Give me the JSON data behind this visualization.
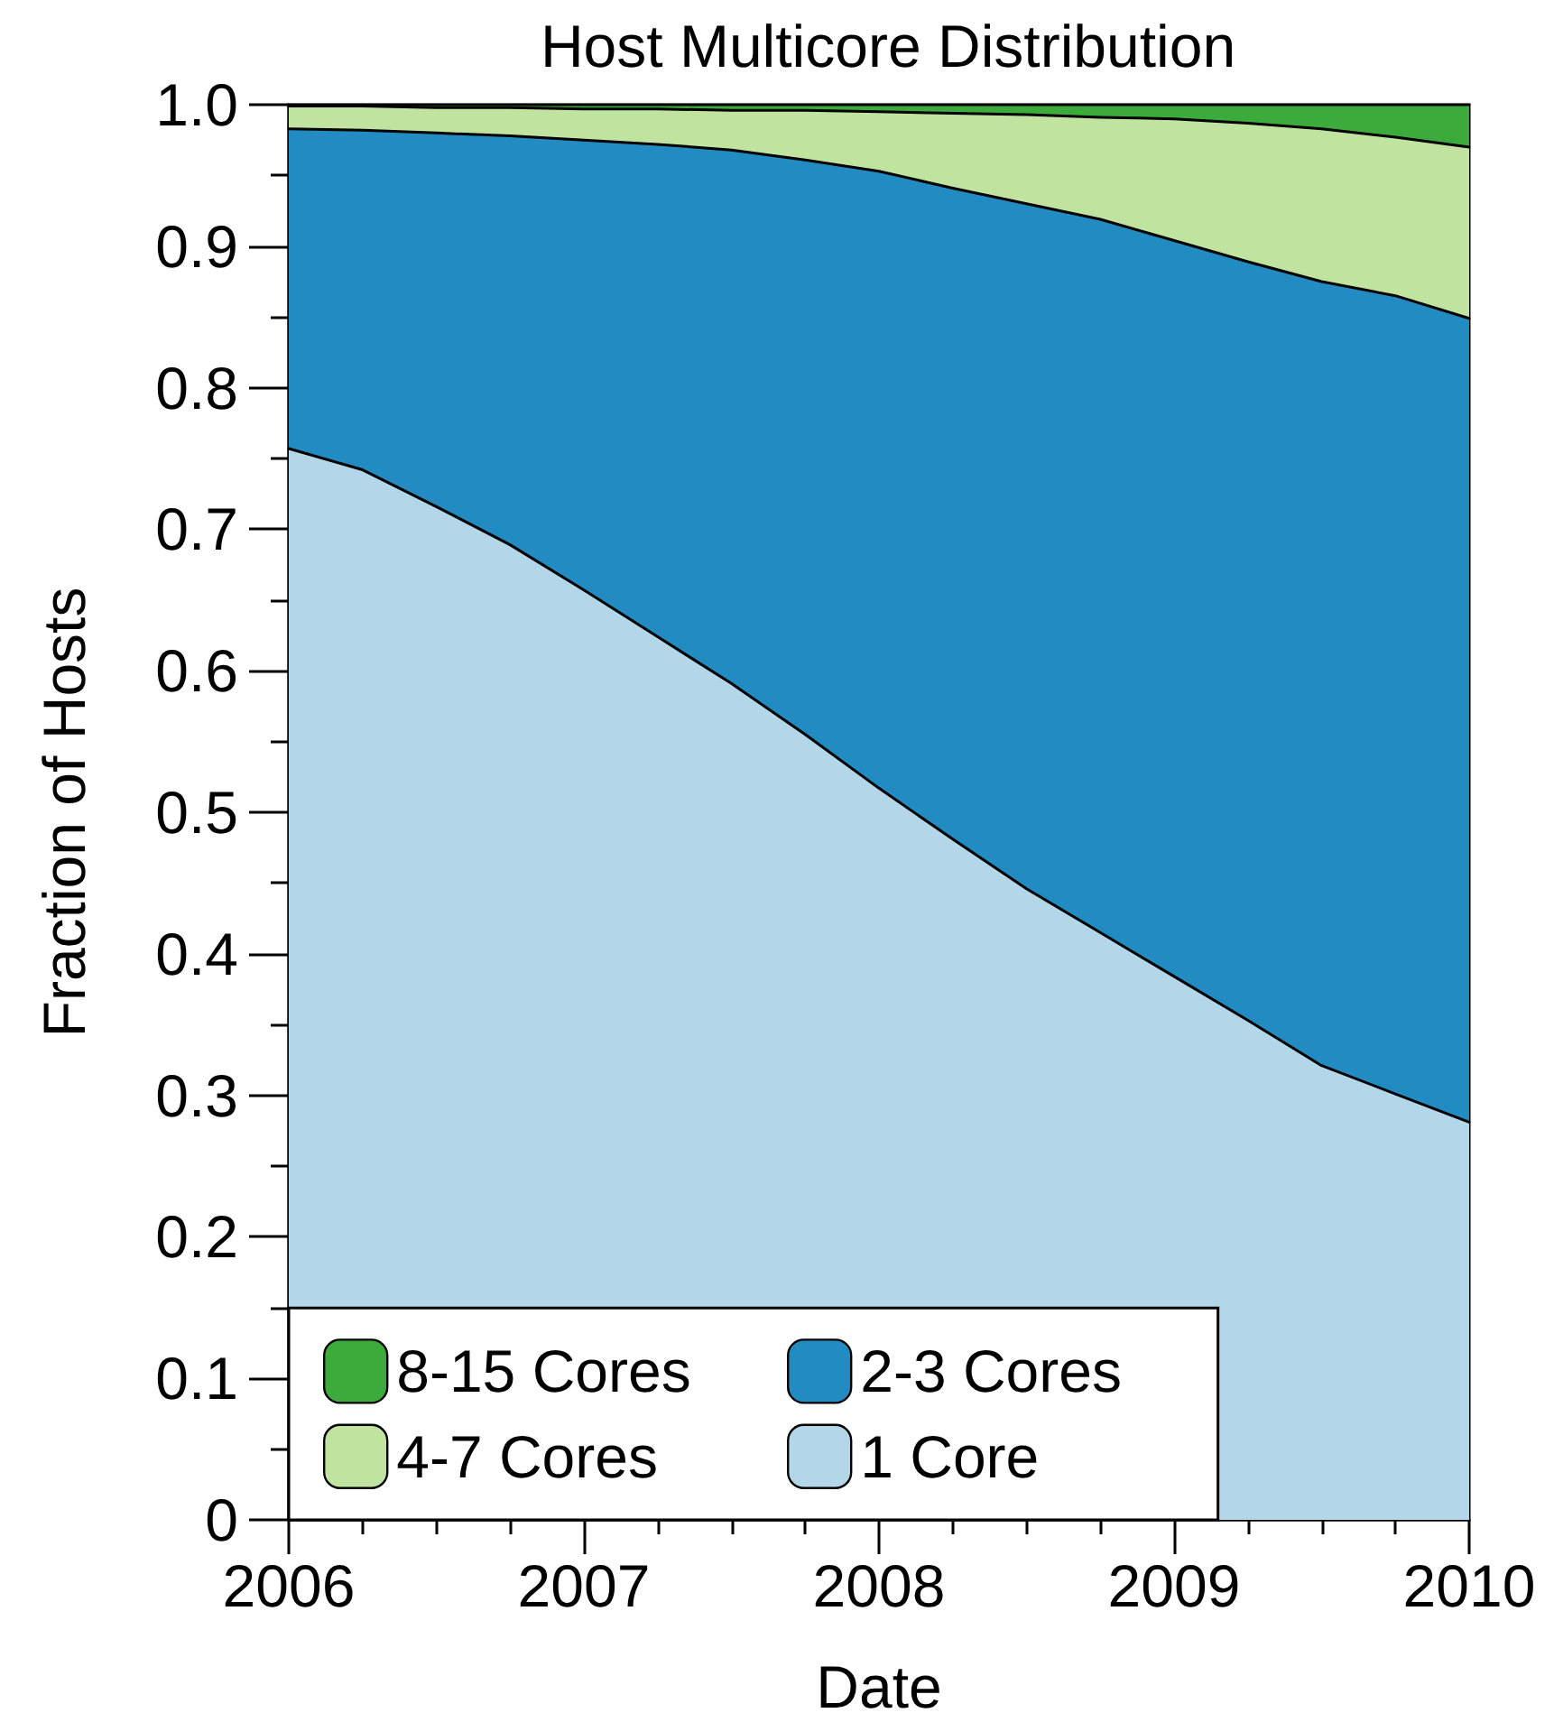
{
  "chart_data": {
    "type": "area",
    "title": "Host Multicore Distribution",
    "xlabel": "Date",
    "ylabel": "Fraction of Hosts",
    "x": [
      2006,
      2006.25,
      2006.5,
      2006.75,
      2007,
      2007.25,
      2007.5,
      2007.75,
      2008,
      2008.25,
      2008.5,
      2008.75,
      2009,
      2009.25,
      2009.5,
      2009.75,
      2010
    ],
    "series": [
      {
        "name": "1 Core",
        "color": "#b3d6e8",
        "values": [
          0.757,
          0.742,
          0.716,
          0.689,
          0.657,
          0.624,
          0.591,
          0.555,
          0.517,
          0.481,
          0.446,
          0.415,
          0.384,
          0.353,
          0.321,
          0.301,
          0.281
        ]
      },
      {
        "name": "2-3 Cores",
        "color": "#228bc2",
        "values": [
          0.226,
          0.24,
          0.264,
          0.289,
          0.318,
          0.348,
          0.377,
          0.406,
          0.436,
          0.46,
          0.484,
          0.504,
          0.52,
          0.536,
          0.554,
          0.564,
          0.568
        ]
      },
      {
        "name": "4-7 Cores",
        "color": "#c0e4a0",
        "values": [
          0.016,
          0.017,
          0.018,
          0.02,
          0.022,
          0.025,
          0.028,
          0.035,
          0.042,
          0.053,
          0.063,
          0.072,
          0.086,
          0.098,
          0.108,
          0.112,
          0.121
        ]
      },
      {
        "name": "8-15 Cores",
        "color": "#3dab3b",
        "values": [
          0.001,
          0.001,
          0.002,
          0.002,
          0.003,
          0.003,
          0.004,
          0.004,
          0.005,
          0.006,
          0.007,
          0.009,
          0.01,
          0.013,
          0.017,
          0.023,
          0.03
        ]
      }
    ],
    "stacked": true,
    "xlim": [
      2006,
      2010
    ],
    "xticks": [
      2006,
      2007,
      2008,
      2009,
      2010,
      {
        "value": 2006.25,
        "label": null
      },
      {
        "value": 2006.5,
        "label": null
      },
      {
        "value": 2006.75,
        "label": null
      },
      {
        "value": 2007.25,
        "label": null
      },
      {
        "value": 2007.5,
        "label": null
      },
      {
        "value": 2007.75,
        "label": null
      },
      {
        "value": 2008.25,
        "label": null
      },
      {
        "value": 2008.5,
        "label": null
      },
      {
        "value": 2008.75,
        "label": null
      },
      {
        "value": 2009.25,
        "label": null
      },
      {
        "value": 2009.5,
        "label": null
      },
      {
        "value": 2009.75,
        "label": null
      }
    ],
    "ylim": [
      0,
      1
    ],
    "yticks": [
      0,
      0.1,
      0.2,
      0.3,
      0.4,
      0.5,
      0.6,
      0.7,
      0.8,
      0.9,
      {
        "value": 1,
        "label": "1.0"
      },
      {
        "value": 0.05,
        "label": null
      },
      {
        "value": 0.15,
        "label": null
      },
      {
        "value": 0.25,
        "label": null
      },
      {
        "value": 0.35,
        "label": null
      },
      {
        "value": 0.45,
        "label": null
      },
      {
        "value": 0.55,
        "label": null
      },
      {
        "value": 0.65,
        "label": null
      },
      {
        "value": 0.75,
        "label": null
      },
      {
        "value": 0.85,
        "label": null
      },
      {
        "value": 0.95,
        "label": null
      }
    ],
    "legend": "bottom left",
    "marker": "none"
  }
}
